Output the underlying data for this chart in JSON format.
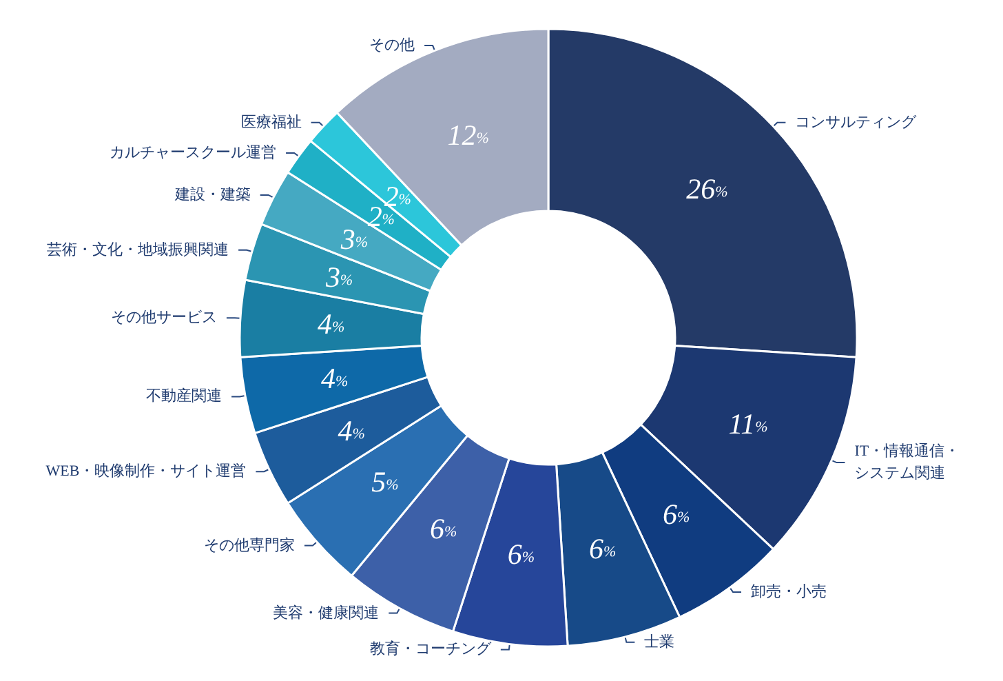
{
  "chart_data": {
    "type": "donut",
    "categories": [
      "コンサルティング",
      "IT・情報通信・システム関連",
      "卸売・小売",
      "士業",
      "教育・コーチング",
      "美容・健康関連",
      "その他専門家",
      "WEB・映像制作・サイト運営",
      "不動産関連",
      "その他サービス",
      "芸術・文化・地域振興関連",
      "建設・建築",
      "カルチャースクール運営",
      "医療福祉",
      "その他"
    ],
    "values": [
      26,
      11,
      6,
      6,
      6,
      6,
      5,
      4,
      4,
      4,
      3,
      3,
      2,
      2,
      12
    ],
    "value_labels": [
      "26%",
      "11%",
      "6%",
      "6%",
      "6%",
      "6%",
      "5%",
      "4%",
      "4%",
      "4%",
      "3%",
      "3%",
      "2%",
      "2%",
      "12%"
    ],
    "colors": [
      "#243a67",
      "#1c3871",
      "#103c80",
      "#174a88",
      "#26469a",
      "#3d60a8",
      "#2a6fb2",
      "#1d5c9c",
      "#0e69a8",
      "#1a7ea3",
      "#2b95b2",
      "#45a9c2",
      "#1fb0c6",
      "#2cc6da",
      "#a3abc1"
    ]
  }
}
